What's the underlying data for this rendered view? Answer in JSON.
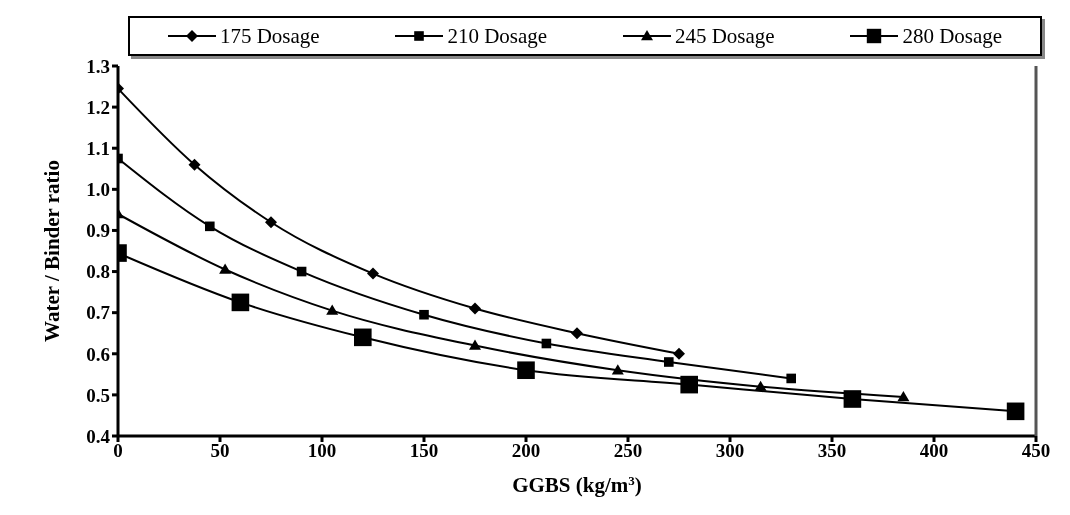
{
  "chart_data": {
    "type": "line",
    "xlabel": "GGBS (kg/m$^{3}$)",
    "ylabel": "Water / Binder ratio",
    "xlim": [
      0,
      450
    ],
    "xticks": [
      0,
      50,
      100,
      150,
      200,
      250,
      300,
      350,
      400,
      450
    ],
    "ylim": [
      0.4,
      1.3
    ],
    "yticks": [
      {
        "value": 0.4,
        "label": "0.4"
      },
      {
        "value": 0.5,
        "label": "0.5"
      },
      {
        "value": 0.6,
        "label": "0.6"
      },
      {
        "value": 0.7,
        "label": "0.7"
      },
      {
        "value": 0.8,
        "label": "0.8"
      },
      {
        "value": 0.9,
        "label": "0.9"
      },
      {
        "value": 1.0,
        "label": "1.0"
      },
      {
        "value": 1.1,
        "label": "1.1"
      },
      {
        "value": 1.2,
        "label": "1.2"
      },
      {
        "value": 1.3,
        "label": "1.3"
      }
    ],
    "legend": "top",
    "grid": false,
    "line_style": "solid",
    "series": [
      {
        "name": "175 Dosage",
        "color": "#000000",
        "marker": "diamond",
        "x": [
          0,
          37.5,
          75,
          125,
          175,
          225,
          275
        ],
        "values": [
          1.245,
          1.06,
          0.92,
          0.795,
          0.71,
          0.65,
          0.6
        ]
      },
      {
        "name": "210 Dosage",
        "color": "#000000",
        "marker": "square",
        "x": [
          0,
          45,
          90,
          150,
          210,
          270,
          330
        ],
        "values": [
          1.075,
          0.91,
          0.8,
          0.695,
          0.625,
          0.58,
          0.54
        ]
      },
      {
        "name": "245 Dosage",
        "color": "#000000",
        "marker": "triangle",
        "x": [
          0,
          52.5,
          105,
          175,
          245,
          315,
          385
        ],
        "values": [
          0.94,
          0.805,
          0.705,
          0.62,
          0.56,
          0.52,
          0.495
        ]
      },
      {
        "name": "280 Dosage",
        "color": "#000000",
        "marker": "square",
        "x": [
          0,
          60,
          120,
          200,
          280,
          360,
          440
        ],
        "values": [
          0.845,
          0.725,
          0.64,
          0.56,
          0.525,
          0.49,
          0.46
        ]
      }
    ]
  }
}
